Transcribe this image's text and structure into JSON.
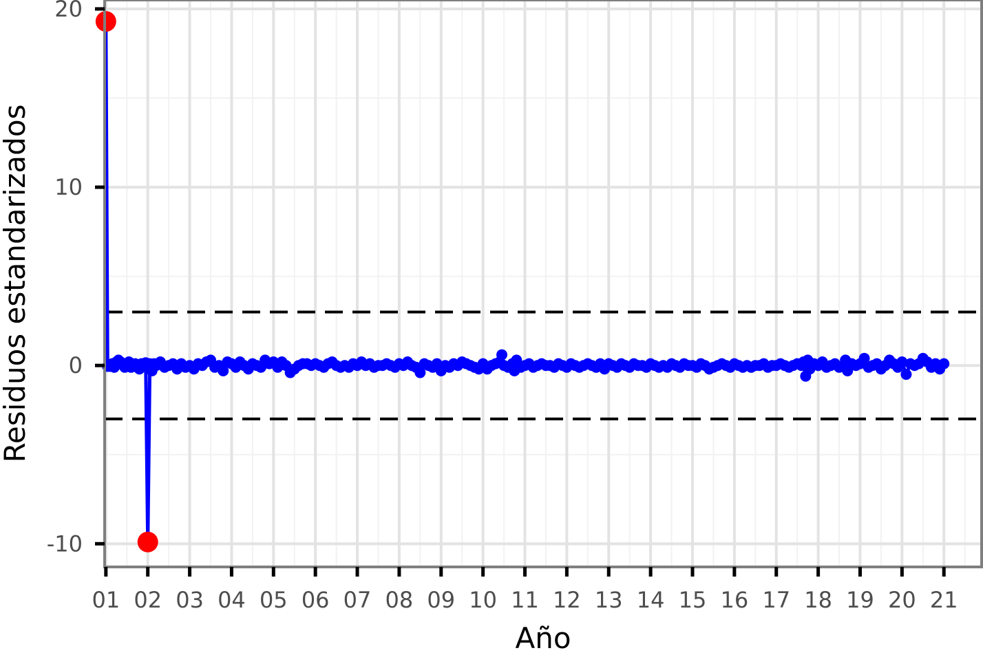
{
  "chart_data": {
    "type": "line",
    "xlabel": "Año",
    "ylabel": "Residuos estandarizados",
    "x_ticks": [
      "01",
      "02",
      "03",
      "04",
      "05",
      "06",
      "07",
      "08",
      "09",
      "10",
      "11",
      "12",
      "13",
      "14",
      "15",
      "16",
      "17",
      "18",
      "19",
      "20",
      "21"
    ],
    "y_ticks": [
      -10,
      0,
      10,
      20
    ],
    "xlim": [
      2000.97,
      2021.9
    ],
    "ylim": [
      -11.3,
      20.5
    ],
    "grid": true,
    "reference_lines": [
      {
        "value": 3,
        "style": "dashed",
        "color": "#000000"
      },
      {
        "value": -3,
        "style": "dashed",
        "color": "#000000"
      }
    ],
    "series": [
      {
        "color": "#0000ff",
        "points": [
          [
            2001.0,
            19.3
          ],
          [
            2001.04,
            -0.05
          ],
          [
            2001.1,
            -0.05
          ],
          [
            2001.15,
            0.1
          ],
          [
            2001.2,
            -0.1
          ],
          [
            2001.25,
            0.2
          ],
          [
            2001.3,
            0.3
          ],
          [
            2001.35,
            0.2
          ],
          [
            2001.4,
            0.1
          ],
          [
            2001.45,
            -0.1
          ],
          [
            2001.5,
            0.0
          ],
          [
            2001.55,
            0.2
          ],
          [
            2001.6,
            -0.1
          ],
          [
            2001.65,
            0.0
          ],
          [
            2001.7,
            0.1
          ],
          [
            2001.75,
            -0.1
          ],
          [
            2001.8,
            -0.2
          ],
          [
            2001.85,
            0.1
          ],
          [
            2001.9,
            0.0
          ],
          [
            2001.95,
            0.15
          ],
          [
            2002.0,
            -9.9
          ],
          [
            2002.05,
            0.1
          ],
          [
            2002.1,
            -0.3
          ],
          [
            2002.15,
            0.1
          ],
          [
            2002.2,
            0.0
          ],
          [
            2002.3,
            0.2
          ],
          [
            2002.4,
            -0.1
          ],
          [
            2002.5,
            0.0
          ],
          [
            2002.6,
            0.1
          ],
          [
            2002.7,
            -0.2
          ],
          [
            2002.8,
            0.1
          ],
          [
            2002.9,
            -0.1
          ],
          [
            2003.0,
            0.0
          ],
          [
            2003.1,
            -0.2
          ],
          [
            2003.2,
            0.1
          ],
          [
            2003.3,
            0.0
          ],
          [
            2003.4,
            0.2
          ],
          [
            2003.5,
            0.3
          ],
          [
            2003.6,
            -0.1
          ],
          [
            2003.7,
            0.0
          ],
          [
            2003.8,
            -0.3
          ],
          [
            2003.9,
            0.2
          ],
          [
            2004.0,
            0.1
          ],
          [
            2004.1,
            -0.1
          ],
          [
            2004.2,
            0.2
          ],
          [
            2004.3,
            0.0
          ],
          [
            2004.4,
            -0.2
          ],
          [
            2004.5,
            0.1
          ],
          [
            2004.6,
            0.0
          ],
          [
            2004.7,
            -0.1
          ],
          [
            2004.8,
            0.3
          ],
          [
            2004.9,
            0.1
          ],
          [
            2005.0,
            0.2
          ],
          [
            2005.1,
            -0.1
          ],
          [
            2005.2,
            0.2
          ],
          [
            2005.3,
            0.0
          ],
          [
            2005.4,
            -0.4
          ],
          [
            2005.5,
            -0.2
          ],
          [
            2005.6,
            0.0
          ],
          [
            2005.7,
            0.1
          ],
          [
            2005.8,
            0.1
          ],
          [
            2005.9,
            0.0
          ],
          [
            2006.0,
            0.1
          ],
          [
            2006.1,
            0.0
          ],
          [
            2006.2,
            -0.1
          ],
          [
            2006.3,
            0.1
          ],
          [
            2006.4,
            0.2
          ],
          [
            2006.5,
            0.0
          ],
          [
            2006.6,
            -0.1
          ],
          [
            2006.7,
            0.0
          ],
          [
            2006.8,
            -0.1
          ],
          [
            2006.9,
            0.1
          ],
          [
            2007.0,
            0.0
          ],
          [
            2007.1,
            0.2
          ],
          [
            2007.2,
            0.0
          ],
          [
            2007.3,
            0.1
          ],
          [
            2007.4,
            -0.1
          ],
          [
            2007.5,
            0.0
          ],
          [
            2007.6,
            0.0
          ],
          [
            2007.7,
            0.1
          ],
          [
            2007.8,
            0.0
          ],
          [
            2007.9,
            -0.1
          ],
          [
            2008.0,
            0.1
          ],
          [
            2008.1,
            0.0
          ],
          [
            2008.2,
            0.2
          ],
          [
            2008.3,
            0.0
          ],
          [
            2008.4,
            -0.1
          ],
          [
            2008.5,
            -0.4
          ],
          [
            2008.6,
            0.1
          ],
          [
            2008.7,
            0.0
          ],
          [
            2008.8,
            -0.1
          ],
          [
            2008.9,
            0.1
          ],
          [
            2009.0,
            -0.3
          ],
          [
            2009.1,
            0.0
          ],
          [
            2009.2,
            -0.1
          ],
          [
            2009.3,
            0.1
          ],
          [
            2009.4,
            0.0
          ],
          [
            2009.5,
            0.2
          ],
          [
            2009.6,
            0.1
          ],
          [
            2009.7,
            0.0
          ],
          [
            2009.8,
            -0.1
          ],
          [
            2009.9,
            -0.2
          ],
          [
            2010.0,
            0.1
          ],
          [
            2010.1,
            -0.2
          ],
          [
            2010.2,
            0.0
          ],
          [
            2010.3,
            0.1
          ],
          [
            2010.4,
            0.2
          ],
          [
            2010.45,
            0.6
          ],
          [
            2010.5,
            0.0
          ],
          [
            2010.6,
            -0.1
          ],
          [
            2010.7,
            0.1
          ],
          [
            2010.75,
            -0.3
          ],
          [
            2010.8,
            0.3
          ],
          [
            2010.9,
            -0.1
          ],
          [
            2011.0,
            0.0
          ],
          [
            2011.1,
            0.1
          ],
          [
            2011.2,
            -0.1
          ],
          [
            2011.3,
            0.0
          ],
          [
            2011.4,
            0.1
          ],
          [
            2011.5,
            0.0
          ],
          [
            2011.6,
            0.0
          ],
          [
            2011.7,
            -0.1
          ],
          [
            2011.8,
            0.1
          ],
          [
            2011.9,
            0.0
          ],
          [
            2012.0,
            -0.1
          ],
          [
            2012.1,
            0.1
          ],
          [
            2012.2,
            0.0
          ],
          [
            2012.3,
            -0.1
          ],
          [
            2012.4,
            0.0
          ],
          [
            2012.5,
            0.1
          ],
          [
            2012.6,
            0.0
          ],
          [
            2012.7,
            -0.1
          ],
          [
            2012.8,
            0.1
          ],
          [
            2012.9,
            -0.2
          ],
          [
            2013.0,
            0.1
          ],
          [
            2013.1,
            0.0
          ],
          [
            2013.2,
            -0.1
          ],
          [
            2013.3,
            0.1
          ],
          [
            2013.4,
            0.0
          ],
          [
            2013.5,
            -0.1
          ],
          [
            2013.6,
            0.1
          ],
          [
            2013.7,
            0.0
          ],
          [
            2013.8,
            0.0
          ],
          [
            2013.9,
            -0.1
          ],
          [
            2014.0,
            0.1
          ],
          [
            2014.1,
            0.0
          ],
          [
            2014.2,
            -0.1
          ],
          [
            2014.3,
            0.0
          ],
          [
            2014.4,
            -0.1
          ],
          [
            2014.5,
            0.1
          ],
          [
            2014.6,
            0.0
          ],
          [
            2014.7,
            -0.1
          ],
          [
            2014.8,
            0.1
          ],
          [
            2014.9,
            0.0
          ],
          [
            2015.0,
            0.0
          ],
          [
            2015.1,
            -0.1
          ],
          [
            2015.2,
            0.1
          ],
          [
            2015.3,
            0.0
          ],
          [
            2015.4,
            -0.2
          ],
          [
            2015.5,
            -0.1
          ],
          [
            2015.6,
            0.0
          ],
          [
            2015.7,
            0.1
          ],
          [
            2015.8,
            0.0
          ],
          [
            2015.9,
            -0.1
          ],
          [
            2016.0,
            0.1
          ],
          [
            2016.1,
            0.0
          ],
          [
            2016.2,
            -0.1
          ],
          [
            2016.3,
            0.0
          ],
          [
            2016.4,
            -0.1
          ],
          [
            2016.5,
            0.0
          ],
          [
            2016.6,
            0.0
          ],
          [
            2016.7,
            0.1
          ],
          [
            2016.8,
            -0.1
          ],
          [
            2016.9,
            0.0
          ],
          [
            2017.0,
            0.0
          ],
          [
            2017.1,
            0.1
          ],
          [
            2017.2,
            0.0
          ],
          [
            2017.3,
            -0.1
          ],
          [
            2017.4,
            0.0
          ],
          [
            2017.5,
            0.1
          ],
          [
            2017.6,
            0.0
          ],
          [
            2017.65,
            0.2
          ],
          [
            2017.7,
            -0.6
          ],
          [
            2017.75,
            0.3
          ],
          [
            2017.8,
            -0.2
          ],
          [
            2017.9,
            0.1
          ],
          [
            2018.0,
            0.0
          ],
          [
            2018.1,
            0.2
          ],
          [
            2018.2,
            -0.1
          ],
          [
            2018.3,
            0.0
          ],
          [
            2018.4,
            0.1
          ],
          [
            2018.5,
            -0.1
          ],
          [
            2018.6,
            0.0
          ],
          [
            2018.65,
            0.3
          ],
          [
            2018.7,
            -0.3
          ],
          [
            2018.8,
            0.1
          ],
          [
            2018.9,
            0.0
          ],
          [
            2019.0,
            0.1
          ],
          [
            2019.1,
            0.4
          ],
          [
            2019.2,
            -0.1
          ],
          [
            2019.3,
            0.0
          ],
          [
            2019.4,
            0.1
          ],
          [
            2019.5,
            -0.2
          ],
          [
            2019.6,
            0.0
          ],
          [
            2019.7,
            0.3
          ],
          [
            2019.8,
            0.1
          ],
          [
            2019.9,
            -0.1
          ],
          [
            2020.0,
            0.2
          ],
          [
            2020.1,
            -0.5
          ],
          [
            2020.2,
            0.1
          ],
          [
            2020.3,
            0.0
          ],
          [
            2020.4,
            0.1
          ],
          [
            2020.5,
            0.4
          ],
          [
            2020.6,
            0.2
          ],
          [
            2020.7,
            -0.1
          ],
          [
            2020.8,
            0.1
          ],
          [
            2020.9,
            -0.2
          ],
          [
            2021.0,
            0.1
          ]
        ]
      }
    ],
    "highlighted_points": [
      {
        "x": 2001.0,
        "y": 19.3,
        "color": "#ff0000"
      },
      {
        "x": 2002.0,
        "y": -9.9,
        "color": "#ff0000"
      }
    ]
  }
}
